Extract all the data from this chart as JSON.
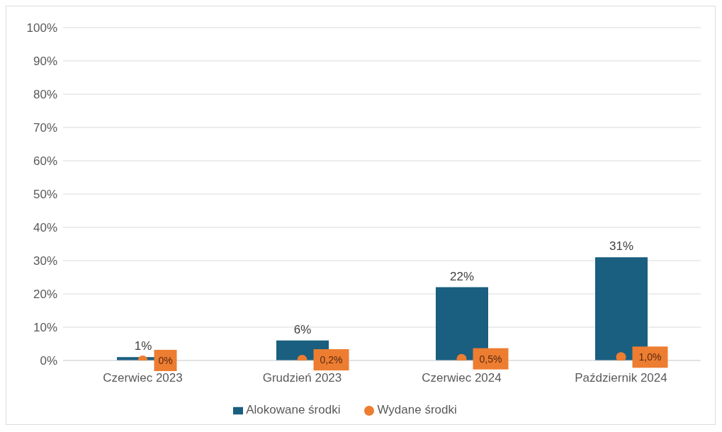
{
  "chart_data": {
    "type": "bar",
    "categories": [
      "Czerwiec 2023",
      "Grudzień 2023",
      "Czerwiec 2024",
      "Październik 2024"
    ],
    "series": [
      {
        "name": "Alokowane środki",
        "color": "#1a5e80",
        "values": [
          1,
          6,
          22,
          31
        ],
        "value_labels": [
          "1%",
          "6%",
          "22%",
          "31%"
        ]
      },
      {
        "name": "Wydane środki",
        "type": "scatter",
        "color": "#ed7d31",
        "values": [
          0,
          0.2,
          0.5,
          1.0
        ],
        "value_labels": [
          "0%",
          "0,2%",
          "0,5%",
          "1,0%"
        ]
      }
    ],
    "ylim": [
      0,
      100
    ],
    "yticks": [
      {
        "value": 0,
        "label": "0%"
      },
      {
        "value": 10,
        "label": "10%"
      },
      {
        "value": 20,
        "label": "20%"
      },
      {
        "value": 30,
        "label": "30%"
      },
      {
        "value": 40,
        "label": "40%"
      },
      {
        "value": 50,
        "label": "50%"
      },
      {
        "value": 60,
        "label": "60%"
      },
      {
        "value": 70,
        "label": "70%"
      },
      {
        "value": 80,
        "label": "80%"
      },
      {
        "value": 90,
        "label": "90%"
      },
      {
        "value": 100,
        "label": "100%"
      }
    ],
    "grid": "y",
    "legend": "bottom",
    "marker": "circle"
  }
}
